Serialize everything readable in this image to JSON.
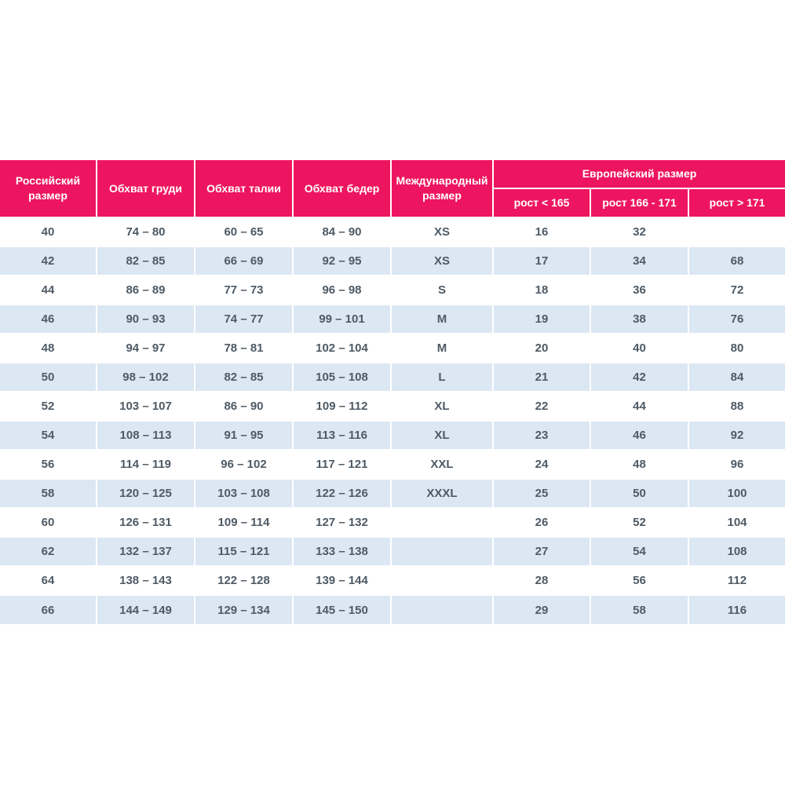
{
  "colors": {
    "header_bg": "#ee1560",
    "header_text": "#ffffff",
    "row_alt_bg": "#dbe7f3",
    "row_bg": "#ffffff",
    "cell_text": "#4e5a65",
    "divider": "#ffffff"
  },
  "chart_data": {
    "type": "table",
    "header": {
      "russian_size": "Российский размер",
      "chest": "Обхват груди",
      "waist": "Обхват талии",
      "hips": "Обхват бедер",
      "international": "Международный размер",
      "european_group": "Европейский размер",
      "european_sub": [
        "рост < 165",
        "рост 166 - 171",
        "рост > 171"
      ]
    },
    "rows": [
      [
        "40",
        "74 – 80",
        "60 – 65",
        "84 – 90",
        "XS",
        "16",
        "32",
        ""
      ],
      [
        "42",
        "82 – 85",
        "66 – 69",
        "92 – 95",
        "XS",
        "17",
        "34",
        "68"
      ],
      [
        "44",
        "86 – 89",
        "77 – 73",
        "96 – 98",
        "S",
        "18",
        "36",
        "72"
      ],
      [
        "46",
        "90 – 93",
        "74 – 77",
        "99 – 101",
        "M",
        "19",
        "38",
        "76"
      ],
      [
        "48",
        "94 – 97",
        "78 – 81",
        "102 – 104",
        "M",
        "20",
        "40",
        "80"
      ],
      [
        "50",
        "98 – 102",
        "82 – 85",
        "105 – 108",
        "L",
        "21",
        "42",
        "84"
      ],
      [
        "52",
        "103 – 107",
        "86 – 90",
        "109 – 112",
        "XL",
        "22",
        "44",
        "88"
      ],
      [
        "54",
        "108 – 113",
        "91 – 95",
        "113 – 116",
        "XL",
        "23",
        "46",
        "92"
      ],
      [
        "56",
        "114 – 119",
        "96 – 102",
        "117 – 121",
        "XXL",
        "24",
        "48",
        "96"
      ],
      [
        "58",
        "120 – 125",
        "103 – 108",
        "122 – 126",
        "XXXL",
        "25",
        "50",
        "100"
      ],
      [
        "60",
        "126 – 131",
        "109 – 114",
        "127 – 132",
        "",
        "26",
        "52",
        "104"
      ],
      [
        "62",
        "132 – 137",
        "115 – 121",
        "133 – 138",
        "",
        "27",
        "54",
        "108"
      ],
      [
        "64",
        "138 – 143",
        "122 – 128",
        "139 – 144",
        "",
        "28",
        "56",
        "112"
      ],
      [
        "66",
        "144 – 149",
        "129 – 134",
        "145 – 150",
        "",
        "29",
        "58",
        "116"
      ]
    ]
  }
}
